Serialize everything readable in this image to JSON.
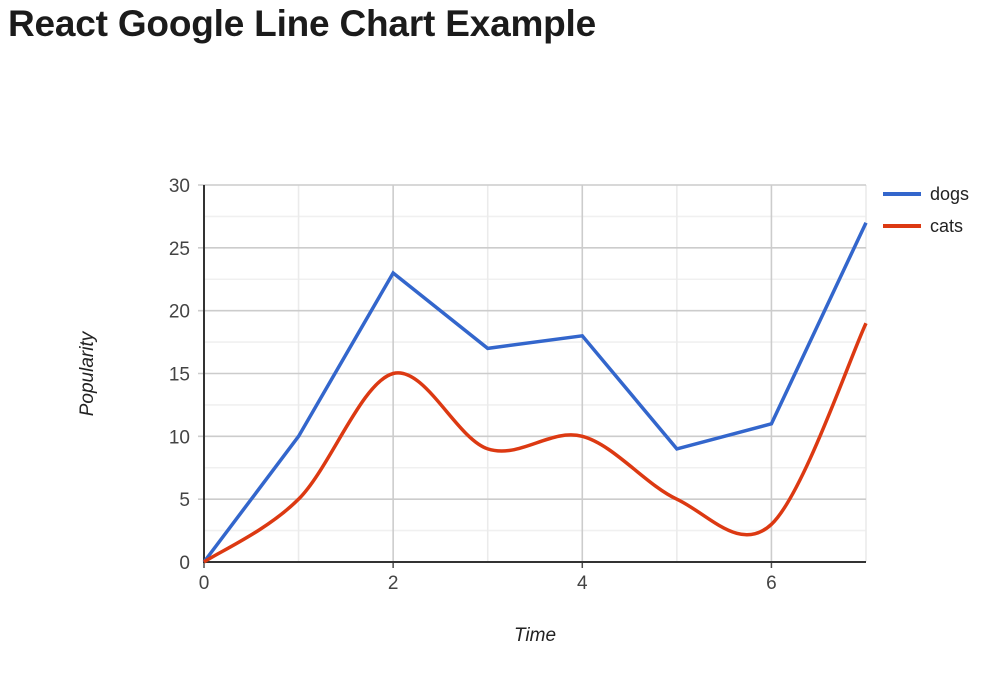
{
  "header": {
    "title": "React Google Line Chart Example"
  },
  "chart_data": {
    "type": "line",
    "title": "React Google Line Chart Example",
    "x": [
      0,
      1,
      2,
      3,
      4,
      5,
      6,
      7
    ],
    "series": [
      {
        "name": "dogs",
        "color": "#3366cc",
        "curve": "straight",
        "values": [
          0,
          10,
          23,
          17,
          18,
          9,
          11,
          27
        ]
      },
      {
        "name": "cats",
        "color": "#dc3912",
        "curve": "smooth",
        "values": [
          0,
          5,
          15,
          9,
          10,
          5,
          3,
          19
        ]
      }
    ],
    "xlabel": "Time",
    "ylabel": "Popularity",
    "xlim": [
      0,
      7
    ],
    "ylim": [
      0,
      30
    ],
    "x_ticks": [
      0,
      2,
      4,
      6
    ],
    "y_ticks": [
      0,
      5,
      10,
      15,
      20,
      25,
      30
    ],
    "y_minor_step": 2.5,
    "x_gridline_step": 1,
    "grid": true,
    "legend_position": "right"
  }
}
